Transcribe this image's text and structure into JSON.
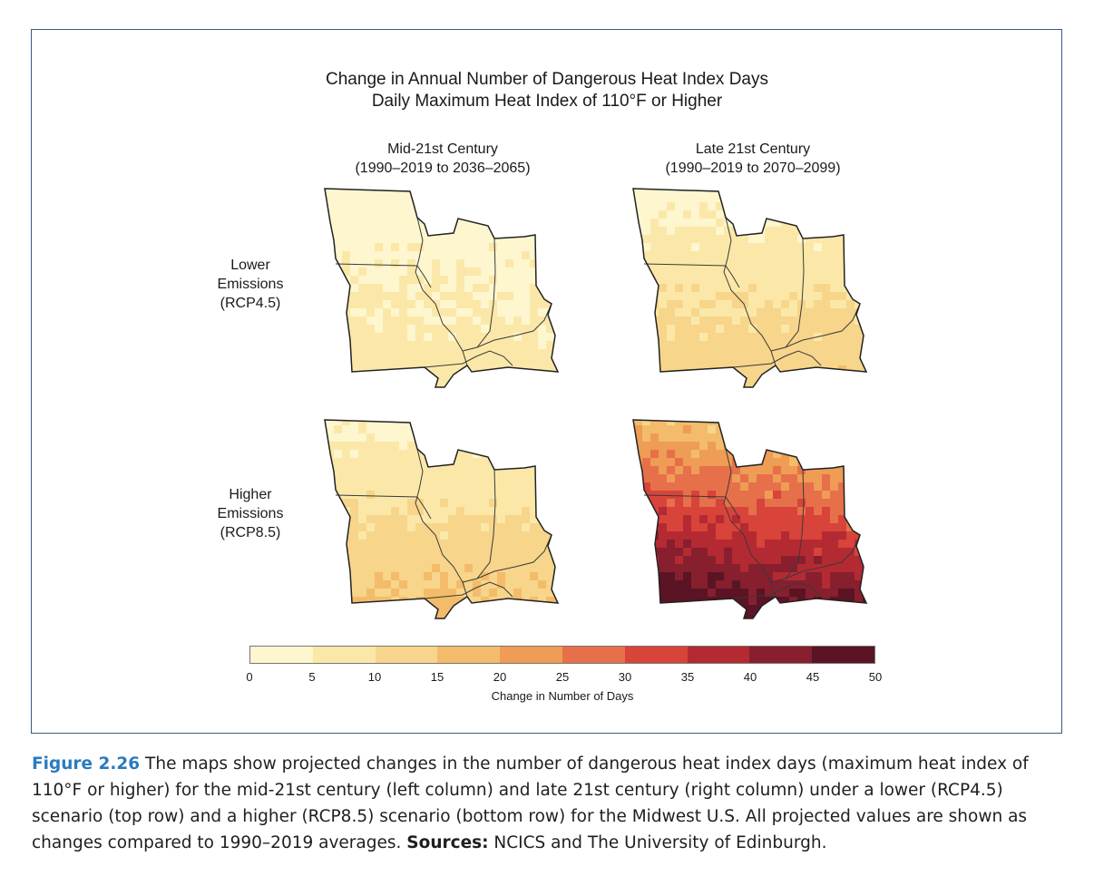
{
  "figure": {
    "title_line1": "Change in Annual Number of Dangerous Heat Index Days",
    "title_line2": "Daily Maximum Heat Index of 110°F or Higher"
  },
  "columns": [
    {
      "label": "Mid-21st Century",
      "period": "(1990–2019 to 2036–2065)"
    },
    {
      "label": "Late 21st Century",
      "period": "(1990–2019 to 2070–2099)"
    }
  ],
  "rows": [
    {
      "line1": "Lower",
      "line2": "Emissions",
      "line3": "(RCP4.5)"
    },
    {
      "line1": "Higher",
      "line2": "Emissions",
      "line3": "(RCP8.5)"
    }
  ],
  "maps": [
    {
      "panel": "lower-mid",
      "level": 0.14
    },
    {
      "panel": "lower-late",
      "level": 0.26
    },
    {
      "panel": "higher-mid",
      "level": 0.3
    },
    {
      "panel": "higher-late",
      "level": 0.72
    }
  ],
  "legend": {
    "title": "Change in Number of Days",
    "ticks": [
      "0",
      "5",
      "10",
      "15",
      "20",
      "25",
      "30",
      "35",
      "40",
      "45",
      "50"
    ],
    "colors": [
      "#fdf6cf",
      "#fbe8a8",
      "#f7d58a",
      "#f3bc6a",
      "#ef9c55",
      "#e6704a",
      "#d8433a",
      "#b42a32",
      "#871f2e",
      "#5a1424"
    ]
  },
  "caption": {
    "figure_label": "Figure 2.26",
    "text": " The maps show projected changes in the number of dangerous heat index days (maximum heat index of 110°F or higher) for the mid-21st century (left column) and late 21st century (right column) under a lower (RCP4.5) scenario (top row) and a higher (RCP8.5) scenario (bottom row) for the Midwest U.S. All projected values are shown as changes compared to 1990–2019 averages. ",
    "sources_label": "Sources:",
    "sources_text": " NCICS and The University of Edinburgh."
  }
}
